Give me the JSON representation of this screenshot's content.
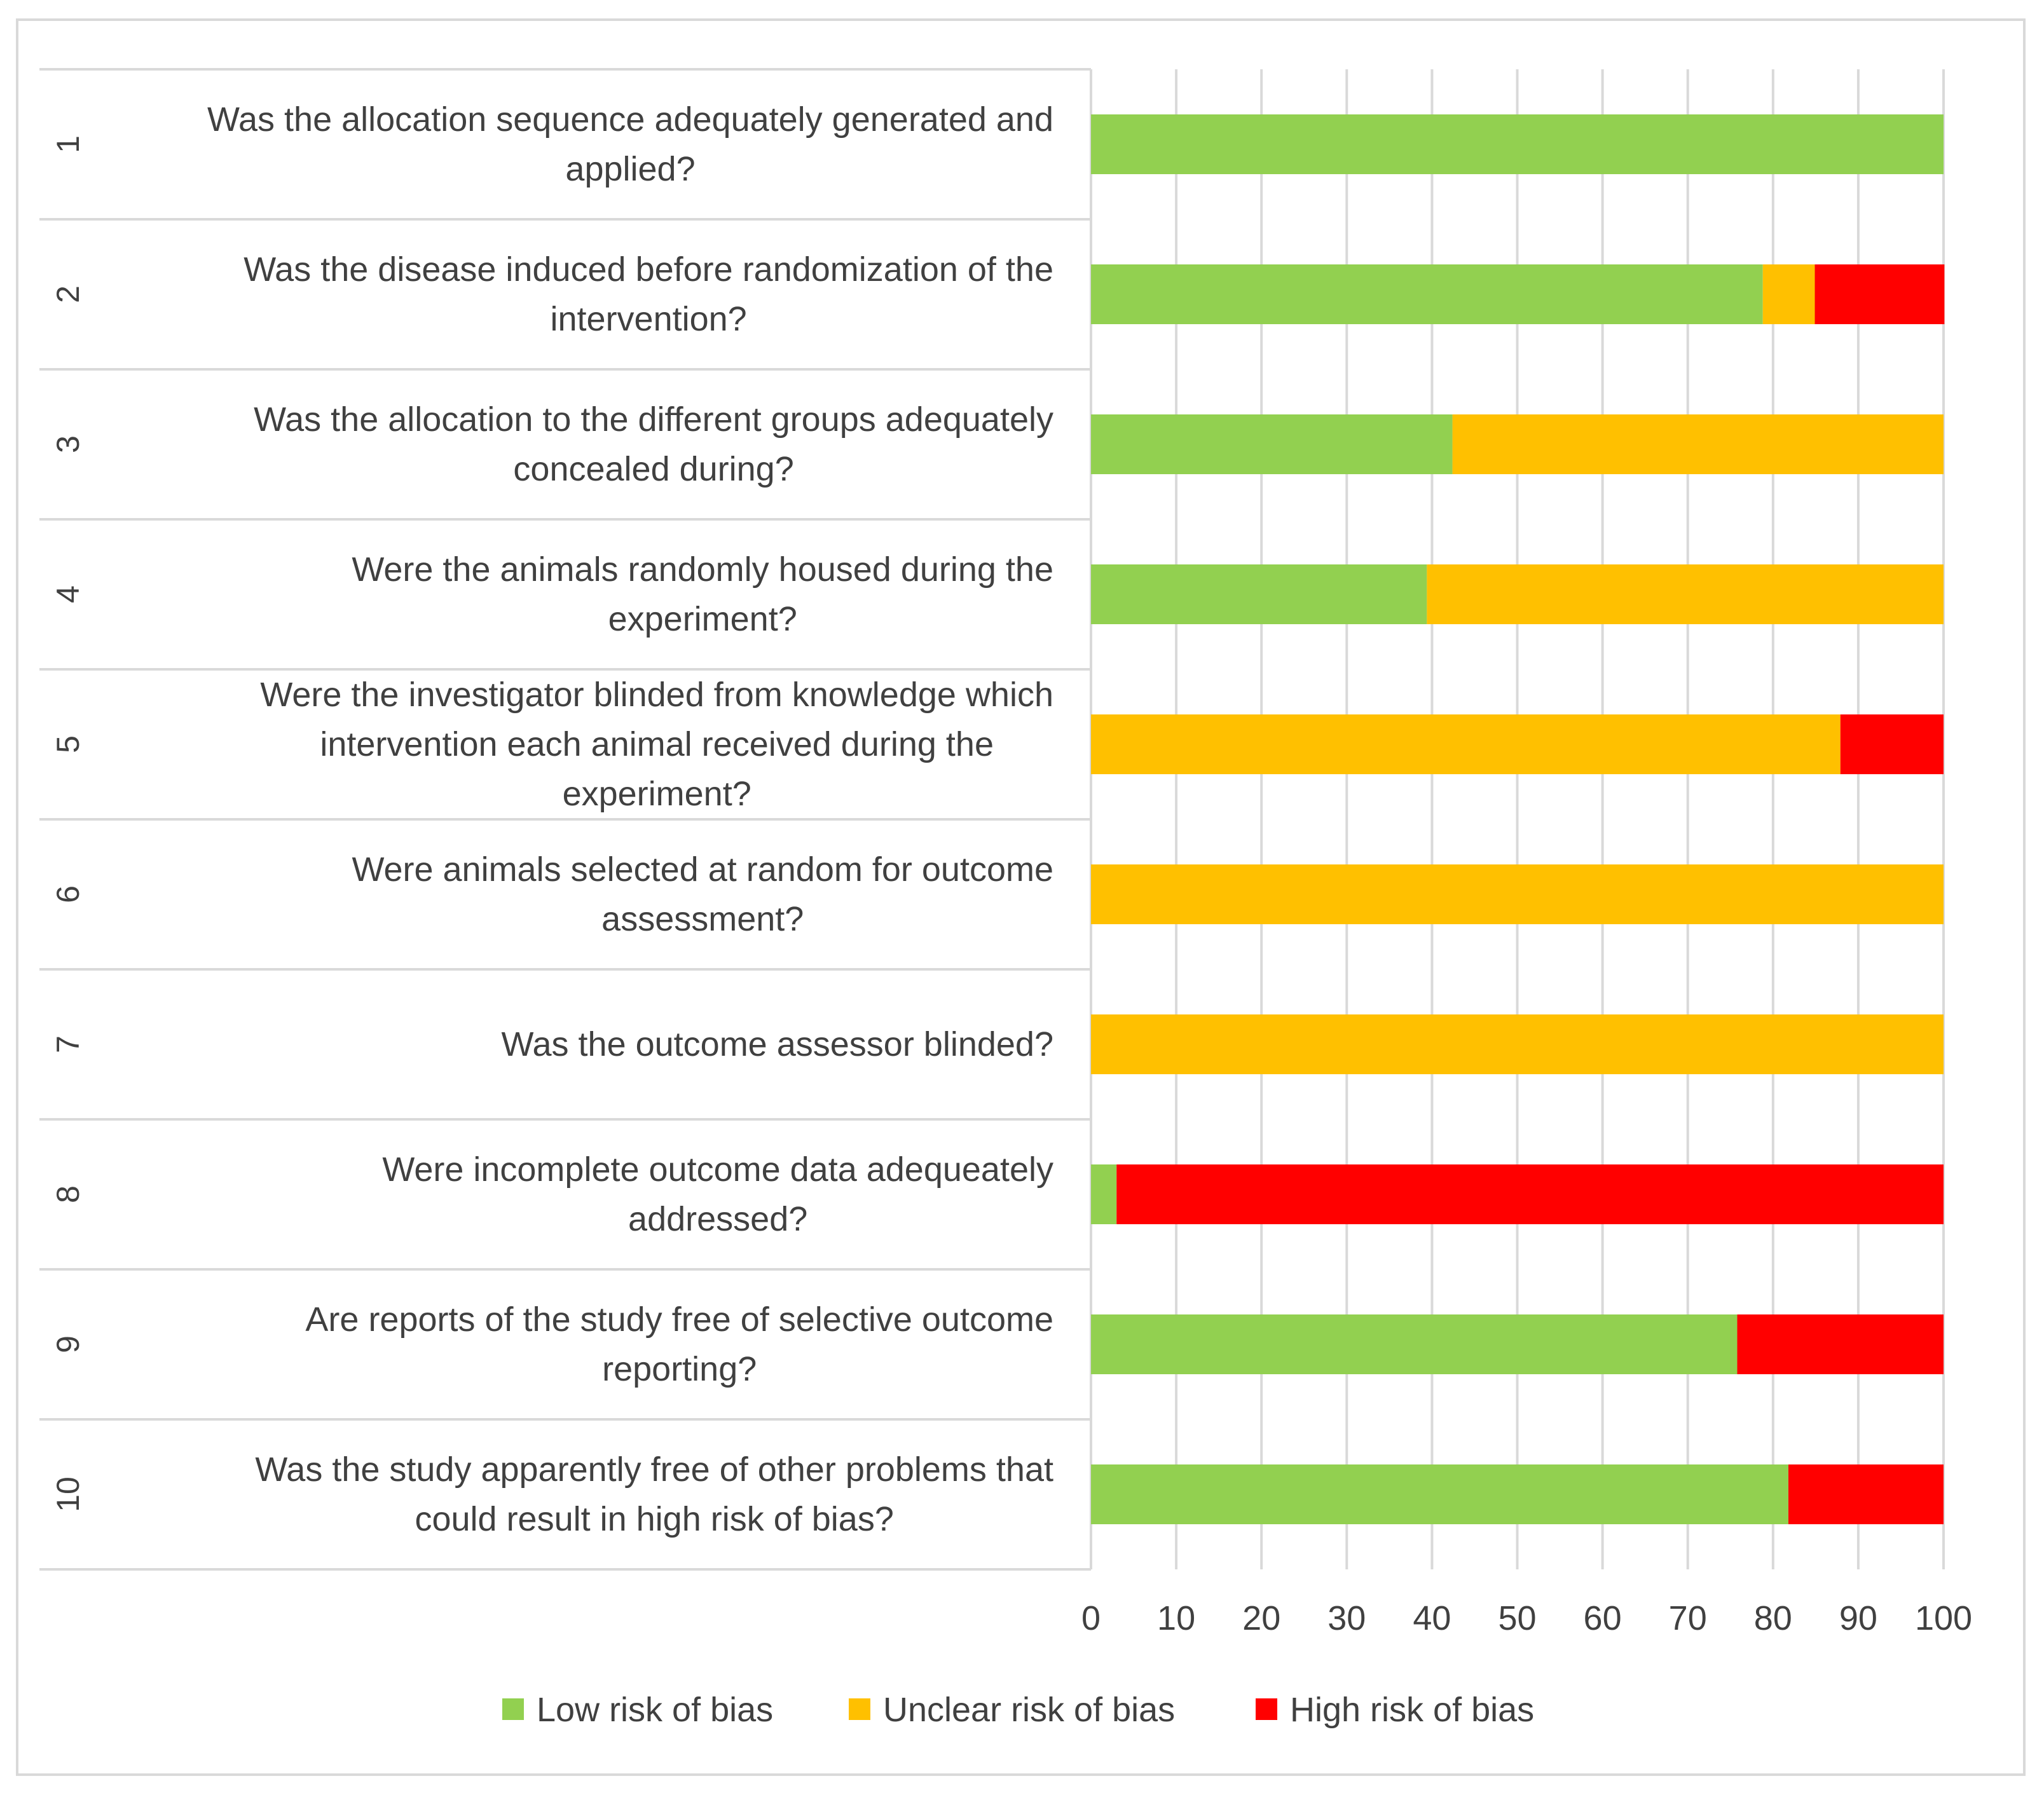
{
  "chart_data": {
    "type": "bar",
    "orientation": "horizontal",
    "stacked": true,
    "title": "",
    "xlabel": "",
    "ylabel": "",
    "xlim": [
      0,
      100
    ],
    "xticks": [
      "0",
      "10",
      "20",
      "30",
      "40",
      "50",
      "60",
      "70",
      "80",
      "90",
      "100"
    ],
    "grid": true,
    "legend_position": "bottom",
    "categories": [
      {
        "number": "1",
        "lines": [
          "Was the allocation sequence adequately generated and",
          "applied?"
        ]
      },
      {
        "number": "2",
        "lines": [
          "Was the disease induced before randomization of the",
          "intervention?"
        ]
      },
      {
        "number": "3",
        "lines": [
          "Was the allocation to the different groups adequately",
          "concealed during?"
        ]
      },
      {
        "number": "4",
        "lines": [
          "Were the animals randomly housed during the",
          "experiment?"
        ]
      },
      {
        "number": "5",
        "lines": [
          "Were the investigator blinded from knowledge which",
          "intervention each animal received during the",
          "experiment?"
        ]
      },
      {
        "number": "6",
        "lines": [
          "Were animals selected at random for outcome",
          "assessment?"
        ]
      },
      {
        "number": "7",
        "lines": [
          "Was the outcome assessor blinded?"
        ]
      },
      {
        "number": "8",
        "lines": [
          "Were incomplete outcome data adequeately",
          "addressed?"
        ]
      },
      {
        "number": "9",
        "lines": [
          "Are reports of the study free of selective outcome",
          "reporting?"
        ]
      },
      {
        "number": "10",
        "lines": [
          "Was the study apparently free of other problems that",
          "could result in high risk of bias?"
        ]
      }
    ],
    "series": [
      {
        "name": "Low risk of bias",
        "color": "#92d050",
        "values": [
          100,
          78.8,
          42.4,
          39.4,
          0,
          0,
          0,
          3.0,
          75.8,
          81.8
        ]
      },
      {
        "name": "Unclear risk of bias",
        "color": "#ffc000",
        "values": [
          0,
          6.1,
          57.6,
          60.6,
          87.9,
          100,
          100,
          0,
          0,
          0
        ]
      },
      {
        "name": "High risk of bias",
        "color": "#ff0000",
        "values": [
          0,
          15.2,
          0,
          0,
          12.1,
          0,
          0,
          97.0,
          24.2,
          18.2
        ]
      }
    ]
  }
}
